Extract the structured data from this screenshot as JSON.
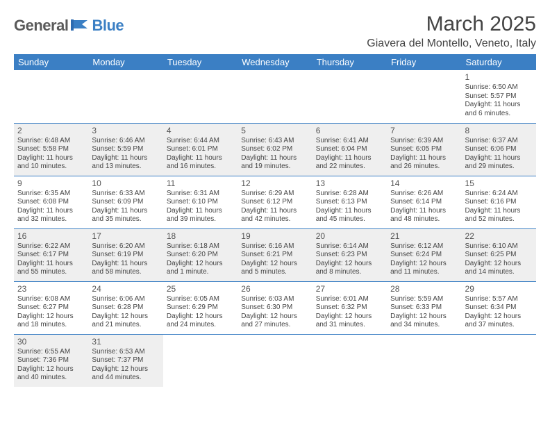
{
  "brand": {
    "part1": "General",
    "part2": "Blue"
  },
  "header": {
    "month_title": "March 2025",
    "location": "Giavera del Montello, Veneto, Italy"
  },
  "weekdays": [
    "Sunday",
    "Monday",
    "Tuesday",
    "Wednesday",
    "Thursday",
    "Friday",
    "Saturday"
  ],
  "colors": {
    "header_bg": "#3b7fc4",
    "header_fg": "#ffffff",
    "row_border": "#3b7fc4",
    "shade_bg": "#efefef",
    "text": "#444444"
  },
  "typography": {
    "month_title_fontsize": 30,
    "location_fontsize": 16,
    "weekday_fontsize": 13,
    "daynum_fontsize": 12,
    "cell_fontsize": 10
  },
  "layout": {
    "first_weekday_index": 6,
    "days_in_month": 31
  },
  "weeks": [
    [
      null,
      null,
      null,
      null,
      null,
      null,
      {
        "n": "1",
        "sunrise": "Sunrise: 6:50 AM",
        "sunset": "Sunset: 5:57 PM",
        "day1": "Daylight: 11 hours",
        "day2": "and 6 minutes."
      }
    ],
    [
      {
        "n": "2",
        "shaded": true,
        "sunrise": "Sunrise: 6:48 AM",
        "sunset": "Sunset: 5:58 PM",
        "day1": "Daylight: 11 hours",
        "day2": "and 10 minutes."
      },
      {
        "n": "3",
        "shaded": true,
        "sunrise": "Sunrise: 6:46 AM",
        "sunset": "Sunset: 5:59 PM",
        "day1": "Daylight: 11 hours",
        "day2": "and 13 minutes."
      },
      {
        "n": "4",
        "shaded": true,
        "sunrise": "Sunrise: 6:44 AM",
        "sunset": "Sunset: 6:01 PM",
        "day1": "Daylight: 11 hours",
        "day2": "and 16 minutes."
      },
      {
        "n": "5",
        "shaded": true,
        "sunrise": "Sunrise: 6:43 AM",
        "sunset": "Sunset: 6:02 PM",
        "day1": "Daylight: 11 hours",
        "day2": "and 19 minutes."
      },
      {
        "n": "6",
        "shaded": true,
        "sunrise": "Sunrise: 6:41 AM",
        "sunset": "Sunset: 6:04 PM",
        "day1": "Daylight: 11 hours",
        "day2": "and 22 minutes."
      },
      {
        "n": "7",
        "shaded": true,
        "sunrise": "Sunrise: 6:39 AM",
        "sunset": "Sunset: 6:05 PM",
        "day1": "Daylight: 11 hours",
        "day2": "and 26 minutes."
      },
      {
        "n": "8",
        "shaded": true,
        "sunrise": "Sunrise: 6:37 AM",
        "sunset": "Sunset: 6:06 PM",
        "day1": "Daylight: 11 hours",
        "day2": "and 29 minutes."
      }
    ],
    [
      {
        "n": "9",
        "sunrise": "Sunrise: 6:35 AM",
        "sunset": "Sunset: 6:08 PM",
        "day1": "Daylight: 11 hours",
        "day2": "and 32 minutes."
      },
      {
        "n": "10",
        "sunrise": "Sunrise: 6:33 AM",
        "sunset": "Sunset: 6:09 PM",
        "day1": "Daylight: 11 hours",
        "day2": "and 35 minutes."
      },
      {
        "n": "11",
        "sunrise": "Sunrise: 6:31 AM",
        "sunset": "Sunset: 6:10 PM",
        "day1": "Daylight: 11 hours",
        "day2": "and 39 minutes."
      },
      {
        "n": "12",
        "sunrise": "Sunrise: 6:29 AM",
        "sunset": "Sunset: 6:12 PM",
        "day1": "Daylight: 11 hours",
        "day2": "and 42 minutes."
      },
      {
        "n": "13",
        "sunrise": "Sunrise: 6:28 AM",
        "sunset": "Sunset: 6:13 PM",
        "day1": "Daylight: 11 hours",
        "day2": "and 45 minutes."
      },
      {
        "n": "14",
        "sunrise": "Sunrise: 6:26 AM",
        "sunset": "Sunset: 6:14 PM",
        "day1": "Daylight: 11 hours",
        "day2": "and 48 minutes."
      },
      {
        "n": "15",
        "sunrise": "Sunrise: 6:24 AM",
        "sunset": "Sunset: 6:16 PM",
        "day1": "Daylight: 11 hours",
        "day2": "and 52 minutes."
      }
    ],
    [
      {
        "n": "16",
        "shaded": true,
        "sunrise": "Sunrise: 6:22 AM",
        "sunset": "Sunset: 6:17 PM",
        "day1": "Daylight: 11 hours",
        "day2": "and 55 minutes."
      },
      {
        "n": "17",
        "shaded": true,
        "sunrise": "Sunrise: 6:20 AM",
        "sunset": "Sunset: 6:19 PM",
        "day1": "Daylight: 11 hours",
        "day2": "and 58 minutes."
      },
      {
        "n": "18",
        "shaded": true,
        "sunrise": "Sunrise: 6:18 AM",
        "sunset": "Sunset: 6:20 PM",
        "day1": "Daylight: 12 hours",
        "day2": "and 1 minute."
      },
      {
        "n": "19",
        "shaded": true,
        "sunrise": "Sunrise: 6:16 AM",
        "sunset": "Sunset: 6:21 PM",
        "day1": "Daylight: 12 hours",
        "day2": "and 5 minutes."
      },
      {
        "n": "20",
        "shaded": true,
        "sunrise": "Sunrise: 6:14 AM",
        "sunset": "Sunset: 6:23 PM",
        "day1": "Daylight: 12 hours",
        "day2": "and 8 minutes."
      },
      {
        "n": "21",
        "shaded": true,
        "sunrise": "Sunrise: 6:12 AM",
        "sunset": "Sunset: 6:24 PM",
        "day1": "Daylight: 12 hours",
        "day2": "and 11 minutes."
      },
      {
        "n": "22",
        "shaded": true,
        "sunrise": "Sunrise: 6:10 AM",
        "sunset": "Sunset: 6:25 PM",
        "day1": "Daylight: 12 hours",
        "day2": "and 14 minutes."
      }
    ],
    [
      {
        "n": "23",
        "sunrise": "Sunrise: 6:08 AM",
        "sunset": "Sunset: 6:27 PM",
        "day1": "Daylight: 12 hours",
        "day2": "and 18 minutes."
      },
      {
        "n": "24",
        "sunrise": "Sunrise: 6:06 AM",
        "sunset": "Sunset: 6:28 PM",
        "day1": "Daylight: 12 hours",
        "day2": "and 21 minutes."
      },
      {
        "n": "25",
        "sunrise": "Sunrise: 6:05 AM",
        "sunset": "Sunset: 6:29 PM",
        "day1": "Daylight: 12 hours",
        "day2": "and 24 minutes."
      },
      {
        "n": "26",
        "sunrise": "Sunrise: 6:03 AM",
        "sunset": "Sunset: 6:30 PM",
        "day1": "Daylight: 12 hours",
        "day2": "and 27 minutes."
      },
      {
        "n": "27",
        "sunrise": "Sunrise: 6:01 AM",
        "sunset": "Sunset: 6:32 PM",
        "day1": "Daylight: 12 hours",
        "day2": "and 31 minutes."
      },
      {
        "n": "28",
        "sunrise": "Sunrise: 5:59 AM",
        "sunset": "Sunset: 6:33 PM",
        "day1": "Daylight: 12 hours",
        "day2": "and 34 minutes."
      },
      {
        "n": "29",
        "sunrise": "Sunrise: 5:57 AM",
        "sunset": "Sunset: 6:34 PM",
        "day1": "Daylight: 12 hours",
        "day2": "and 37 minutes."
      }
    ],
    [
      {
        "n": "30",
        "shaded": true,
        "sunrise": "Sunrise: 6:55 AM",
        "sunset": "Sunset: 7:36 PM",
        "day1": "Daylight: 12 hours",
        "day2": "and 40 minutes."
      },
      {
        "n": "31",
        "shaded": true,
        "sunrise": "Sunrise: 6:53 AM",
        "sunset": "Sunset: 7:37 PM",
        "day1": "Daylight: 12 hours",
        "day2": "and 44 minutes."
      },
      null,
      null,
      null,
      null,
      null
    ]
  ]
}
